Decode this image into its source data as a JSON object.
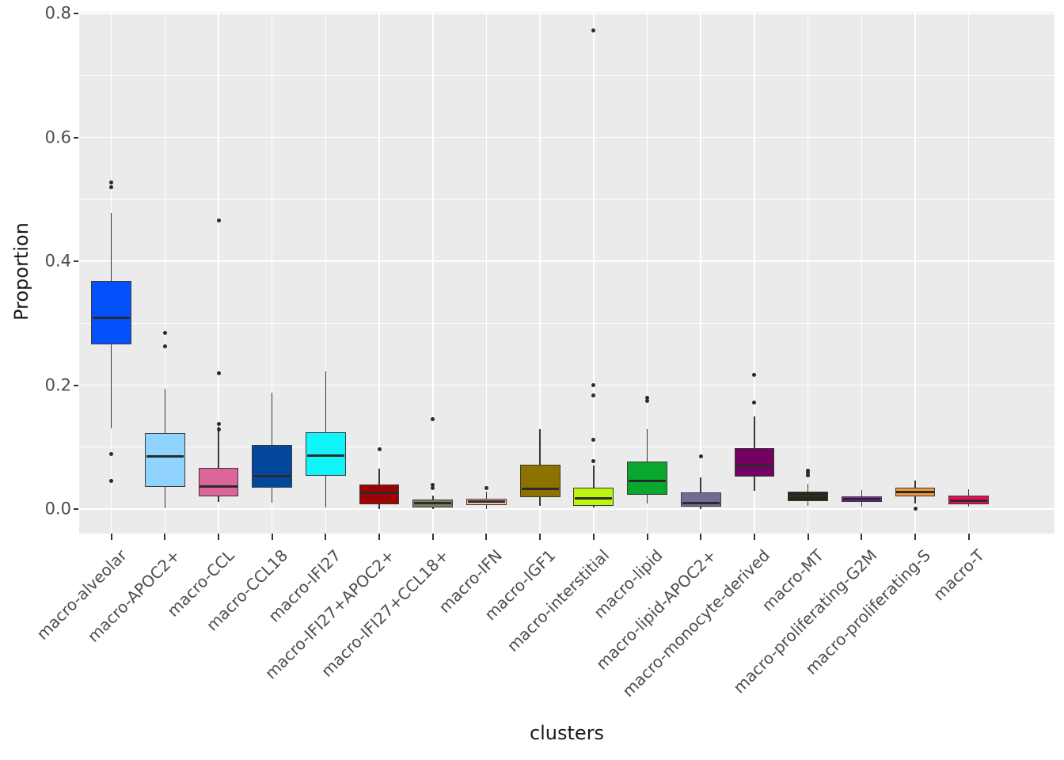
{
  "chart_data": {
    "type": "boxplot",
    "title": "",
    "xlabel": "clusters",
    "ylabel": "Proportion",
    "y_ticks": [
      0.0,
      0.2,
      0.4,
      0.6,
      0.8
    ],
    "y_tick_labels": [
      "0.0",
      "0.2",
      "0.4",
      "0.6",
      "0.8"
    ],
    "ylim": [
      -0.04,
      0.81
    ],
    "grid": "major-white-on-gray",
    "legend": "none",
    "panel_bg": "#EBEBEB",
    "grid_color": "#FFFFFF",
    "box_border_color": "#3A3A3A",
    "median_color": "#2B2B2B",
    "outlier_color": "#2B2B2B",
    "tick_label_color": "#4D4D4D",
    "axis_title_color": "#1A1A1A",
    "categories": [
      "macro-alveolar",
      "macro-APOC2+",
      "macro-CCL",
      "macro-CCL18",
      "macro-IFI27",
      "macro-IFI27+APOC2+",
      "macro-IFI27+CCL18+",
      "macro-IFN",
      "macro-IGF1",
      "macro-interstitial",
      "macro-lipid",
      "macro-lipid-APOC2+",
      "macro-monocyte-derived",
      "macro-MT",
      "macro-proliferating-G2M",
      "macro-proliferating-S",
      "macro-T"
    ],
    "series": [
      {
        "name": "macro-alveolar",
        "color": "#0451FB",
        "whisker_low": 0.13,
        "q1": 0.266,
        "median": 0.309,
        "q3": 0.368,
        "whisker_high": 0.478,
        "outliers": [
          0.527,
          0.52,
          0.089,
          0.046
        ]
      },
      {
        "name": "macro-APOC2+",
        "color": "#90D3FF",
        "whisker_low": 0.001,
        "q1": 0.036,
        "median": 0.085,
        "q3": 0.123,
        "whisker_high": 0.194,
        "outliers": [
          0.284,
          0.263
        ]
      },
      {
        "name": "macro-CCL",
        "color": "#DB6598",
        "whisker_low": 0.012,
        "q1": 0.021,
        "median": 0.037,
        "q3": 0.066,
        "whisker_high": 0.133,
        "outliers": [
          0.466,
          0.219,
          0.138,
          0.128
        ]
      },
      {
        "name": "macro-CCL18",
        "color": "#03489D",
        "whisker_low": 0.01,
        "q1": 0.034,
        "median": 0.053,
        "q3": 0.103,
        "whisker_high": 0.188,
        "outliers": []
      },
      {
        "name": "macro-IFI27",
        "color": "#0FF5F9",
        "whisker_low": 0.003,
        "q1": 0.054,
        "median": 0.086,
        "q3": 0.124,
        "whisker_high": 0.223,
        "outliers": []
      },
      {
        "name": "macro-IFI27+APOC2+",
        "color": "#9E0303",
        "whisker_low": 0.0,
        "q1": 0.008,
        "median": 0.026,
        "q3": 0.039,
        "whisker_high": 0.065,
        "outliers": [
          0.097
        ]
      },
      {
        "name": "macro-IFI27+CCL18+",
        "color": "#7D8165",
        "whisker_low": 0.0,
        "q1": 0.003,
        "median": 0.009,
        "q3": 0.015,
        "whisker_high": 0.022,
        "outliers": [
          0.145,
          0.039,
          0.034
        ]
      },
      {
        "name": "macro-IFN",
        "color": "#FCB7A4",
        "whisker_low": 0.0,
        "q1": 0.006,
        "median": 0.012,
        "q3": 0.017,
        "whisker_high": 0.028,
        "outliers": [
          0.034
        ]
      },
      {
        "name": "macro-IGF1",
        "color": "#8E7200",
        "whisker_low": 0.005,
        "q1": 0.019,
        "median": 0.032,
        "q3": 0.071,
        "whisker_high": 0.129,
        "outliers": []
      },
      {
        "name": "macro-interstitial",
        "color": "#BDF411",
        "whisker_low": 0.003,
        "q1": 0.005,
        "median": 0.017,
        "q3": 0.034,
        "whisker_high": 0.07,
        "outliers": [
          0.773,
          0.2,
          0.183,
          0.112,
          0.077
        ]
      },
      {
        "name": "macro-lipid",
        "color": "#08A72E",
        "whisker_low": 0.009,
        "q1": 0.023,
        "median": 0.045,
        "q3": 0.077,
        "whisker_high": 0.129,
        "outliers": [
          0.179,
          0.175
        ]
      },
      {
        "name": "macro-lipid-APOC2+",
        "color": "#716C96",
        "whisker_low": 0.0,
        "q1": 0.004,
        "median": 0.009,
        "q3": 0.027,
        "whisker_high": 0.051,
        "outliers": [
          0.085
        ]
      },
      {
        "name": "macro-monocyte-derived",
        "color": "#740061",
        "whisker_low": 0.03,
        "q1": 0.053,
        "median": 0.071,
        "q3": 0.099,
        "whisker_high": 0.15,
        "outliers": [
          0.217,
          0.172
        ]
      },
      {
        "name": "macro-MT",
        "color": "#292517",
        "whisker_low": 0.005,
        "q1": 0.013,
        "median": 0.021,
        "q3": 0.028,
        "whisker_high": 0.041,
        "outliers": [
          0.062,
          0.058,
          0.054
        ]
      },
      {
        "name": "macro-proliferating-G2M",
        "color": "#8E18C6",
        "whisker_low": 0.004,
        "q1": 0.012,
        "median": 0.016,
        "q3": 0.021,
        "whisker_high": 0.031,
        "outliers": []
      },
      {
        "name": "macro-proliferating-S",
        "color": "#F49938",
        "whisker_low": 0.009,
        "q1": 0.021,
        "median": 0.027,
        "q3": 0.034,
        "whisker_high": 0.046,
        "outliers": [
          0.001
        ]
      },
      {
        "name": "macro-T",
        "color": "#E60E50",
        "whisker_low": 0.004,
        "q1": 0.008,
        "median": 0.013,
        "q3": 0.022,
        "whisker_high": 0.032,
        "outliers": []
      }
    ]
  }
}
